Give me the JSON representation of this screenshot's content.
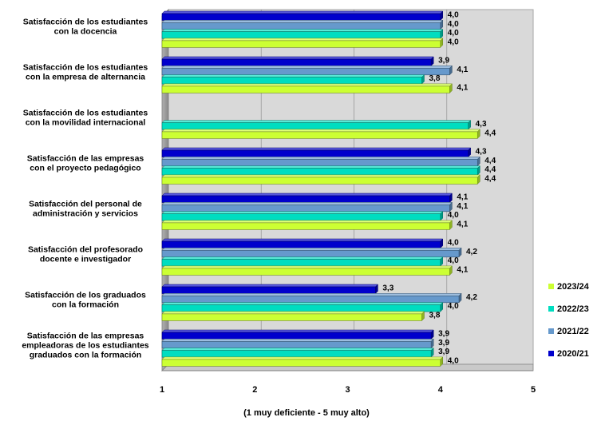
{
  "chart_data": {
    "type": "bar",
    "orientation": "horizontal",
    "title": "",
    "xlabel": "(1 muy deficiente - 5 muy alto)",
    "ylabel": "",
    "xlim": [
      1,
      5
    ],
    "xticks": [
      "1",
      "2",
      "3",
      "4",
      "5"
    ],
    "grid": true,
    "legend_position": "right",
    "categories": [
      [
        "Satisfacción de los estudiantes",
        "con la docencia"
      ],
      [
        "Satisfacción de los estudiantes",
        "con la empresa de alternancia"
      ],
      [
        "Satisfacción de los estudiantes",
        "con la movilidad internacional"
      ],
      [
        "Satisfacción de las empresas",
        "con el proyecto pedagógico"
      ],
      [
        "Satisfacción del personal de",
        "administración y servicios"
      ],
      [
        "Satisfacción del profesorado",
        "docente e investigador"
      ],
      [
        "Satisfacción de los graduados",
        "con la formación"
      ],
      [
        "Satisfacción de las empresas",
        "empleadoras de los estudiantes",
        "graduados con la formación"
      ]
    ],
    "series": [
      {
        "name": "2020/21",
        "color": "#0000cc",
        "values": [
          4.0,
          3.9,
          null,
          4.3,
          4.1,
          4.0,
          3.3,
          3.9
        ],
        "labels": [
          "4,0",
          "3,9",
          "",
          "4,3",
          "4,1",
          "4,0",
          "3,3",
          "3,9"
        ]
      },
      {
        "name": "2021/22",
        "color": "#6699cc",
        "values": [
          4.0,
          4.1,
          null,
          4.4,
          4.1,
          4.2,
          4.2,
          3.9
        ],
        "labels": [
          "4,0",
          "4,1",
          "",
          "4,4",
          "4,1",
          "4,2",
          "4,2",
          "3,9"
        ]
      },
      {
        "name": "2022/23",
        "color": "#00ddc0",
        "values": [
          4.0,
          3.8,
          4.3,
          4.4,
          4.0,
          4.0,
          4.0,
          3.9
        ],
        "labels": [
          "4,0",
          "3,8",
          "4,3",
          "4,4",
          "4,0",
          "4,0",
          "4,0",
          "3,9"
        ]
      },
      {
        "name": "2023/24",
        "color": "#ccff33",
        "values": [
          4.0,
          4.1,
          4.4,
          4.4,
          4.1,
          4.1,
          3.8,
          4.0
        ],
        "labels": [
          "4,0",
          "4,1",
          "4,4",
          "4,4",
          "4,1",
          "4,1",
          "3,8",
          "4,0"
        ]
      }
    ],
    "legend_order": [
      "2023/24",
      "2022/23",
      "2021/22",
      "2020/21"
    ]
  }
}
